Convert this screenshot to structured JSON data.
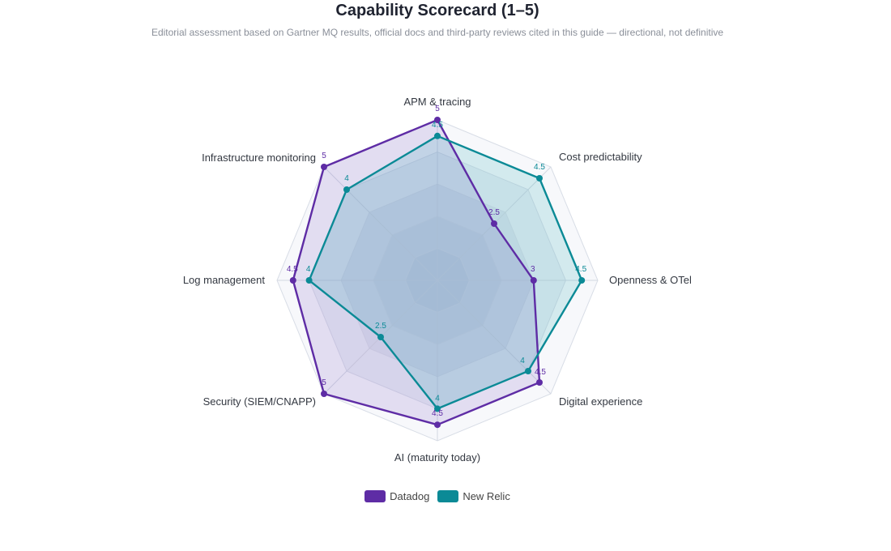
{
  "chart_data": {
    "type": "radar",
    "title": "Capability Scorecard (1–5)",
    "subtitle": "Editorial assessment based on Gartner MQ results, official docs and third-party reviews cited in this guide — directional, not definitive",
    "axes": [
      "APM & tracing",
      "Cost predictability",
      "Openness & OTel",
      "Digital experience",
      "AI (maturity today)",
      "Security (SIEM/CNAPP)",
      "Log management",
      "Infrastructure monitoring"
    ],
    "range": [
      0,
      5
    ],
    "series": [
      {
        "name": "Datadog",
        "color": "#5e2ca5",
        "values": [
          5,
          2.5,
          3,
          4.5,
          4.5,
          5,
          4.5,
          5
        ],
        "labels": [
          "5",
          "2.5",
          "3",
          "4.5",
          "4.5",
          "5",
          "4.5",
          "5"
        ]
      },
      {
        "name": "New Relic",
        "color": "#0b8a96",
        "values": [
          4.5,
          4.5,
          4.5,
          4,
          4,
          2.5,
          4,
          4
        ],
        "labels": [
          "4.5",
          "4.5",
          "4.5",
          "4",
          "4",
          "2.5",
          "4",
          "4"
        ]
      }
    ],
    "legend": "bottom"
  }
}
